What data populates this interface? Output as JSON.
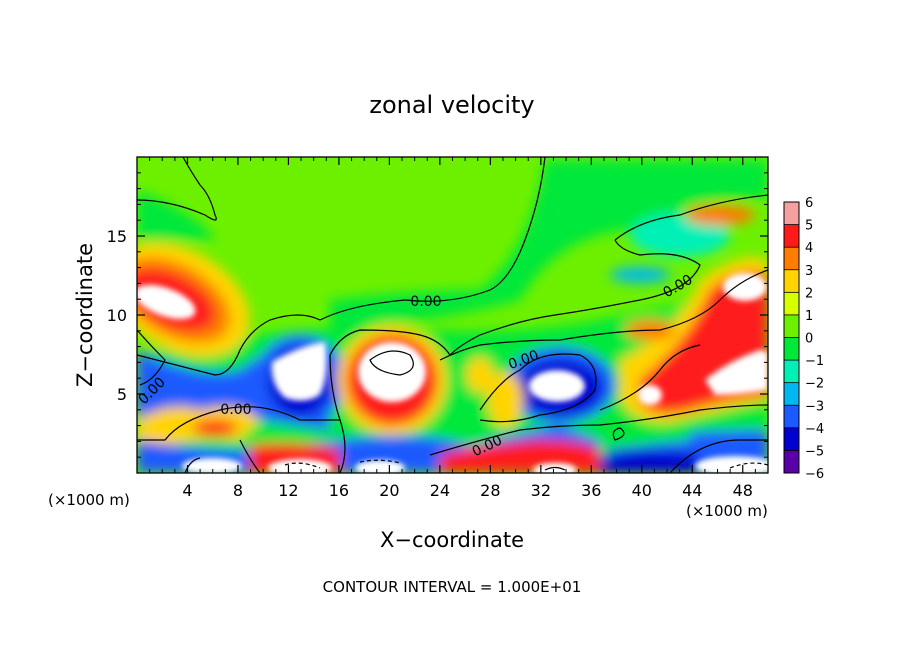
{
  "chart_data": {
    "type": "heatmap",
    "title": "zonal velocity",
    "xlabel": "X−coordinate",
    "ylabel": "Z−coordinate",
    "x_unit_left": "(×1000 m)",
    "x_unit_right": "(×1000 m)",
    "xlim": [
      0,
      50
    ],
    "ylim": [
      0,
      20
    ],
    "x_ticks": [
      4,
      8,
      12,
      16,
      20,
      24,
      28,
      32,
      36,
      40,
      44,
      48
    ],
    "x_tick_labels": [
      "4",
      "8",
      "12",
      "16",
      "20",
      "24",
      "28",
      "32",
      "36",
      "40",
      "44",
      "48"
    ],
    "y_ticks": [
      5,
      10,
      15
    ],
    "y_tick_labels": [
      "5",
      "10",
      "15"
    ],
    "colorbar": {
      "labels": [
        "6",
        "5",
        "4",
        "3",
        "2",
        "1",
        "0",
        "−1",
        "−2",
        "−3",
        "−4",
        "−5",
        "−6"
      ],
      "colors": [
        "#f4a0a0",
        "#ff1a1a",
        "#ff7d00",
        "#ffd400",
        "#d6ff00",
        "#6cf000",
        "#00e83a",
        "#00f0b8",
        "#00b8f0",
        "#1a5aff",
        "#0000d0",
        "#5a00a8"
      ]
    },
    "contour_labels": [
      "0.00",
      "0.00",
      "0.00",
      "0.00",
      "0.00",
      "0.00"
    ],
    "footer": "CONTOUR INTERVAL = 1.000E+01"
  }
}
